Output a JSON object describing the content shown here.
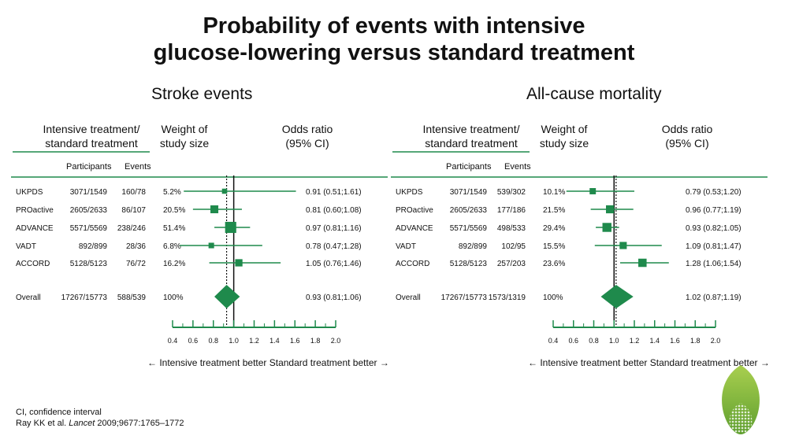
{
  "title_lines": [
    "Probability of events with intensive",
    "glucose-lowering versus standard treatment"
  ],
  "column_headers": {
    "comparison": [
      "Intensive treatment/",
      "standard treatment"
    ],
    "weight": [
      "Weight of",
      "study size"
    ],
    "odds": [
      "Odds ratio",
      "(95% CI)"
    ],
    "participants": "Participants",
    "events": "Events"
  },
  "direction_label": "← Intensive treatment better  Standard treatment better →",
  "footnote": {
    "line1": "CI, confidence interval",
    "ref_prefix": "Ray KK et al. ",
    "ref_journal": "Lancet",
    "ref_suffix": " 2009;9677:1765–1772"
  },
  "colors": {
    "green": "#1f8a4c",
    "logo_light": "#a9cf4f",
    "logo_dark": "#5f9f2f"
  },
  "chart_data": [
    {
      "type": "forest",
      "title": "Stroke events",
      "x_ticks": [
        0.4,
        0.6,
        0.8,
        1.0,
        1.2,
        1.4,
        1.6,
        1.8,
        2.0
      ],
      "x_tick_labels": [
        "0.4",
        "0.6",
        "0.8",
        "1.0",
        "1.2",
        "1.4",
        "1.6",
        "1.8",
        "2.0"
      ],
      "xlim": [
        0.4,
        2.0
      ],
      "reference_line": 1.0,
      "overall_line": 0.93,
      "studies": [
        {
          "name": "UKPDS",
          "participants": "3071/1549",
          "events": "160/78",
          "weight": "5.2%",
          "or": 0.91,
          "lo": 0.51,
          "hi": 1.61,
          "or_text": "0.91 (0.51;1.61)"
        },
        {
          "name": "PROactive",
          "participants": "2605/2633",
          "events": "86/107",
          "weight": "20.5%",
          "or": 0.81,
          "lo": 0.6,
          "hi": 1.08,
          "or_text": "0.81 (0.60;1.08)"
        },
        {
          "name": "ADVANCE",
          "participants": "5571/5569",
          "events": "238/246",
          "weight": "51.4%",
          "or": 0.97,
          "lo": 0.81,
          "hi": 1.16,
          "or_text": "0.97 (0.81;1.16)"
        },
        {
          "name": "VADT",
          "participants": "892/899",
          "events": "28/36",
          "weight": "6.8%",
          "or": 0.78,
          "lo": 0.47,
          "hi": 1.28,
          "or_text": "0.78 (0.47;1.28)"
        },
        {
          "name": "ACCORD",
          "participants": "5128/5123",
          "events": "76/72",
          "weight": "16.2%",
          "or": 1.05,
          "lo": 0.76,
          "hi": 1.46,
          "or_text": "1.05 (0.76;1.46)"
        }
      ],
      "overall": {
        "name": "Overall",
        "participants": "17267/15773",
        "events": "588/539",
        "weight": "100%",
        "or": 0.93,
        "lo": 0.81,
        "hi": 1.06,
        "or_text": "0.93 (0.81;1.06)"
      }
    },
    {
      "type": "forest",
      "title": "All-cause mortality",
      "x_ticks": [
        0.4,
        0.6,
        0.8,
        1.0,
        1.2,
        1.4,
        1.6,
        1.8,
        2.0
      ],
      "x_tick_labels": [
        "0.4",
        "0.6",
        "0.8",
        "1.0",
        "1.2",
        "1.4",
        "1.6",
        "1.8",
        "2.0"
      ],
      "xlim": [
        0.4,
        2.0
      ],
      "reference_line": 1.0,
      "overall_line": 1.02,
      "studies": [
        {
          "name": "UKPDS",
          "participants": "3071/1549",
          "events": "539/302",
          "weight": "10.1%",
          "or": 0.79,
          "lo": 0.53,
          "hi": 1.2,
          "or_text": "0.79 (0.53;1.20)"
        },
        {
          "name": "PROactive",
          "participants": "2605/2633",
          "events": "177/186",
          "weight": "21.5%",
          "or": 0.96,
          "lo": 0.77,
          "hi": 1.19,
          "or_text": "0.96 (0.77;1.19)"
        },
        {
          "name": "ADVANCE",
          "participants": "5571/5569",
          "events": "498/533",
          "weight": "29.4%",
          "or": 0.93,
          "lo": 0.82,
          "hi": 1.05,
          "or_text": "0.93 (0.82;1.05)"
        },
        {
          "name": "VADT",
          "participants": "892/899",
          "events": "102/95",
          "weight": "15.5%",
          "or": 1.09,
          "lo": 0.81,
          "hi": 1.47,
          "or_text": "1.09 (0.81;1.47)"
        },
        {
          "name": "ACCORD",
          "participants": "5128/5123",
          "events": "257/203",
          "weight": "23.6%",
          "or": 1.28,
          "lo": 1.06,
          "hi": 1.54,
          "or_text": "1.28 (1.06;1.54)"
        }
      ],
      "overall": {
        "name": "Overall",
        "participants": "17267/15773",
        "events": "1573/1319",
        "weight": "100%",
        "or": 1.02,
        "lo": 0.87,
        "hi": 1.19,
        "or_text": "1.02 (0.87;1.19)"
      }
    }
  ]
}
